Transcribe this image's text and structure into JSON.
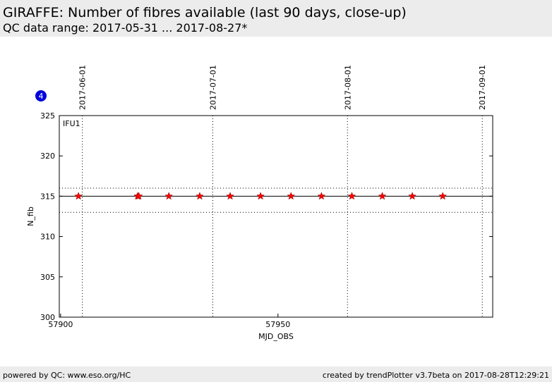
{
  "chart_data": {
    "type": "scatter",
    "title": "GIRAFFE: Number of fibres available (last 90 days, close-up)",
    "subtitle": "QC data range: 2017-05-31 ... 2017-08-27*",
    "badge": "4",
    "annotation": "IFU1",
    "xlabel": "MJD_OBS",
    "ylabel": "N_fib",
    "xlim": [
      57899.7,
      57999.4
    ],
    "ylim": [
      300,
      325
    ],
    "xticks": [
      57900,
      57950
    ],
    "yticks": [
      300,
      305,
      310,
      315,
      320,
      325
    ],
    "top_xticks": [
      {
        "value": 57905,
        "label": "2017-06-01"
      },
      {
        "value": 57935,
        "label": "2017-07-01"
      },
      {
        "value": 57966,
        "label": "2017-08-01"
      },
      {
        "value": 57997,
        "label": "2017-09-01"
      }
    ],
    "hline": 315,
    "dotted_hlines": [
      316,
      313
    ],
    "series": [
      {
        "color": "#ff0000",
        "x": [
          57904.1,
          57917.7,
          57918.0,
          57924.9,
          57932.0,
          57939.0,
          57946.0,
          57953.0,
          57960.0,
          57967.0,
          57974.0,
          57980.9,
          57987.9
        ],
        "values": [
          315,
          315,
          315,
          315,
          315,
          315,
          315,
          315,
          315,
          315,
          315,
          315,
          315
        ]
      }
    ],
    "footer_left": "powered by QC: www.eso.org/HC",
    "footer_right": "created by trendPlotter v3.7beta on 2017-08-28T12:29:21"
  }
}
